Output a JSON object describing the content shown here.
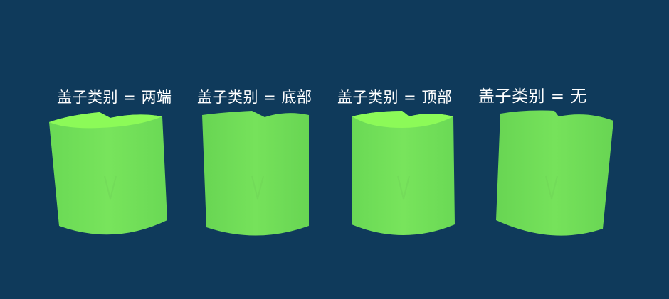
{
  "scene": {
    "background": "#0f3a5b",
    "body_color": "#73e05a",
    "cap_color": "#88ff55"
  },
  "panels": [
    {
      "label": "盖子类别 = 两端"
    },
    {
      "label": "盖子类别 = 底部"
    },
    {
      "label": "盖子类别 = 顶部"
    },
    {
      "label": "盖子类别 = 无"
    }
  ]
}
